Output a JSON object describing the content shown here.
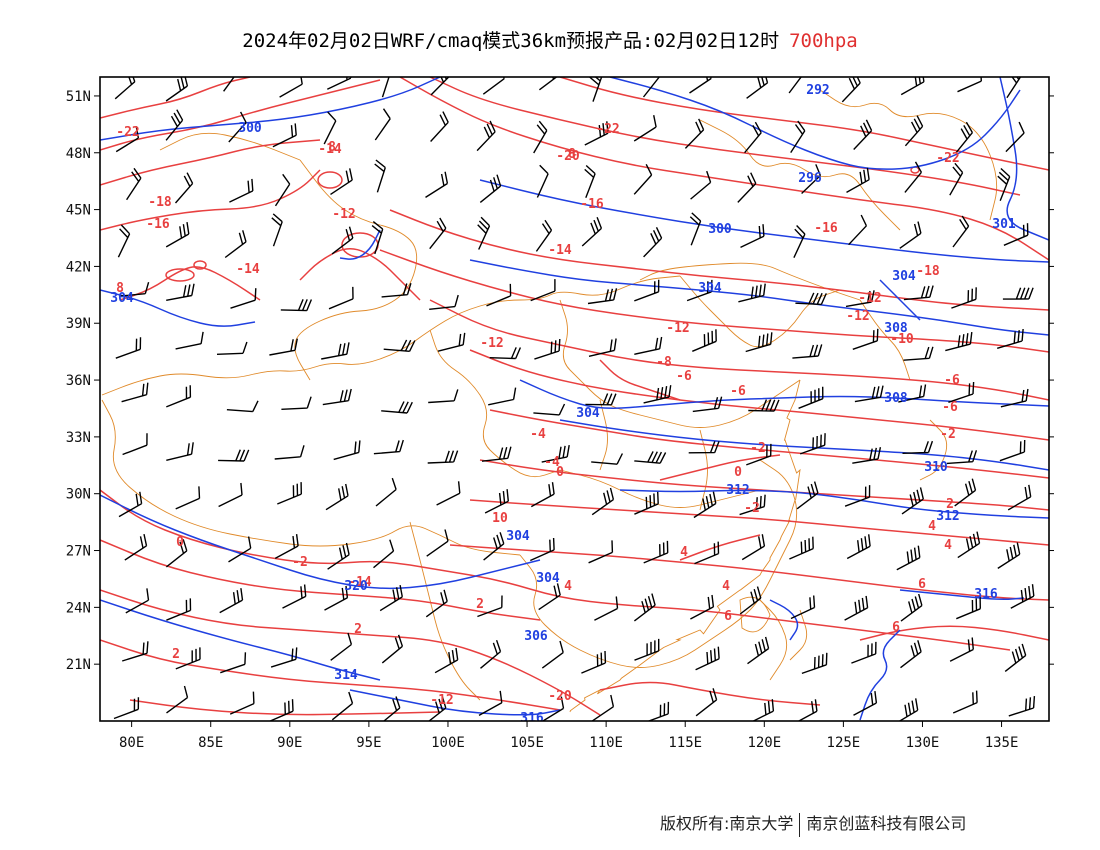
{
  "title": {
    "text": "2024年02月02日WRF/cmaq模式36km预报产品:02月02日12时",
    "level": "700hpa"
  },
  "footer": {
    "left": "版权所有:南京大学",
    "right": "南京创蓝科技有限公司"
  },
  "colors": {
    "temperature_contour": "#e84040",
    "height_contour": "#2040e0",
    "boundary": "#e08a2a",
    "wind_barb": "#000000",
    "level_text": "#e03030"
  },
  "map": {
    "lon_range": [
      78,
      138
    ],
    "lat_range": [
      18,
      52
    ],
    "lon_labels": [
      "80E",
      "85E",
      "90E",
      "95E",
      "100E",
      "105E",
      "110E",
      "115E",
      "120E",
      "125E",
      "130E",
      "135E"
    ],
    "lat_labels": [
      "51N",
      "48N",
      "45N",
      "42N",
      "39N",
      "36N",
      "33N",
      "30N",
      "27N",
      "24N",
      "21N"
    ]
  },
  "temp_labels": [
    "-22",
    "-20",
    "-22",
    "-22",
    "-18",
    "-16",
    "-16",
    "-14",
    "-14",
    "-12",
    "-14",
    "-12",
    "-12",
    "-12",
    "-18",
    "-16",
    "-12",
    "-10",
    "-8",
    "-6",
    "-6",
    "-6",
    "-6",
    "-4",
    "-4",
    "-2",
    "-2",
    "-2",
    "0",
    "0",
    "0",
    "-2",
    "2",
    "2",
    "2",
    "2",
    "4",
    "4",
    "4",
    "4",
    "4",
    "6",
    "6",
    "6",
    "8",
    "8",
    "8",
    "10",
    "-14",
    "-20",
    "-12",
    "0",
    "2",
    "8"
  ],
  "height_labels": [
    "292",
    "296",
    "300",
    "300",
    "304",
    "304",
    "304",
    "304",
    "304",
    "306",
    "308",
    "308",
    "310",
    "312",
    "312",
    "314",
    "316",
    "316",
    "320",
    "301",
    "304"
  ]
}
